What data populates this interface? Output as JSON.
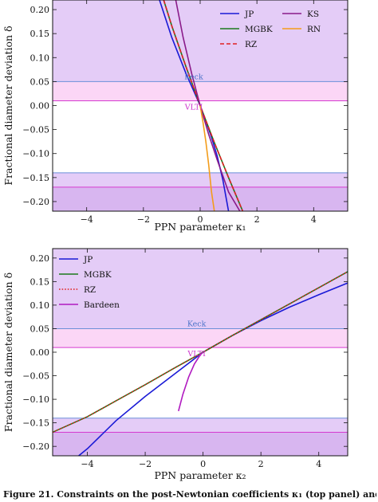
{
  "colors": {
    "excluded_fill": "#e4ccf7",
    "vlti_band_fill": "#fbd6f6",
    "keck_line": "#6b8fd8",
    "vlti_line": "#d63ad0",
    "keck_text": "#4a72c8",
    "vlti_text": "#cc33cc"
  },
  "caption": "Figure 21. Constraints on the post-Newtonian coefficients κ₁ (top panel) and",
  "chart_data": [
    {
      "type": "line",
      "xlabel": "PPN parameter κ₁",
      "ylabel": "Fractional diameter deviation δ",
      "xlim": [
        -5.2,
        5.2
      ],
      "ylim": [
        -0.22,
        0.22
      ],
      "xticks": [
        -4,
        -2,
        0,
        2,
        4
      ],
      "xtick_labels": [
        "−4",
        "−2",
        "0",
        "2",
        "4"
      ],
      "yticks": [
        -0.2,
        -0.15,
        -0.1,
        -0.05,
        0.0,
        0.05,
        0.1,
        0.15,
        0.2
      ],
      "ytick_labels": [
        "−0.20",
        "−0.15",
        "−0.10",
        "−0.05",
        "0.00",
        "0.05",
        "0.10",
        "0.15",
        "0.20"
      ],
      "grid": false,
      "legend_placement": "top-right",
      "constraints": {
        "keck": {
          "label": "Keck",
          "upper": 0.05,
          "lower": -0.14
        },
        "vlti": {
          "label": "VLTI",
          "upper": 0.01,
          "lower": -0.17
        }
      },
      "series": [
        {
          "name": "JP",
          "color": "#1a1ad6",
          "dash": "solid",
          "x": [
            -1.5,
            -1.0,
            -0.5,
            0.0,
            0.2,
            0.4,
            0.6,
            0.8,
            1.0
          ],
          "y": [
            0.232,
            0.142,
            0.067,
            0.0,
            -0.032,
            -0.066,
            -0.105,
            -0.155,
            -0.22
          ]
        },
        {
          "name": "MGBK",
          "color": "#1d7a1d",
          "dash": "solid",
          "x": [
            -1.35,
            -1.0,
            -0.5,
            0.0,
            0.5,
            1.0,
            1.5
          ],
          "y": [
            0.232,
            0.166,
            0.081,
            0.0,
            -0.077,
            -0.15,
            -0.22
          ]
        },
        {
          "name": "RZ",
          "color": "#e02020",
          "dash": "dashed",
          "x": [
            -1.35,
            -1.0,
            -0.5,
            0.0,
            0.5,
            1.0,
            1.5
          ],
          "y": [
            0.232,
            0.166,
            0.081,
            0.0,
            -0.077,
            -0.15,
            -0.22
          ]
        },
        {
          "name": "KS",
          "color": "#8a1b8a",
          "dash": "solid",
          "x": [
            -0.9,
            -0.6,
            -0.3,
            0.0,
            0.3,
            0.6,
            1.0,
            1.4
          ],
          "y": [
            0.232,
            0.142,
            0.067,
            0.0,
            -0.06,
            -0.113,
            -0.18,
            -0.22
          ]
        },
        {
          "name": "RN",
          "color": "#f39c1a",
          "dash": "solid",
          "x": [
            0.0,
            0.1,
            0.2,
            0.3,
            0.4,
            0.5
          ],
          "y": [
            0.0,
            -0.035,
            -0.075,
            -0.123,
            -0.18,
            -0.22
          ]
        }
      ]
    },
    {
      "type": "line",
      "xlabel": "PPN parameter κ₂",
      "ylabel": "Fractional diameter deviation δ",
      "xlim": [
        -5.2,
        5.0
      ],
      "ylim": [
        -0.22,
        0.22
      ],
      "xticks": [
        -4,
        -2,
        0,
        2,
        4
      ],
      "xtick_labels": [
        "−4",
        "−2",
        "0",
        "2",
        "4"
      ],
      "yticks": [
        -0.2,
        -0.15,
        -0.1,
        -0.05,
        0.0,
        0.05,
        0.1,
        0.15,
        0.2
      ],
      "ytick_labels": [
        "−0.20",
        "−0.15",
        "−0.10",
        "−0.05",
        "0.00",
        "0.05",
        "0.10",
        "0.15",
        "0.20"
      ],
      "grid": false,
      "legend_placement": "top-left",
      "constraints": {
        "keck": {
          "label": "Keck",
          "upper": 0.05,
          "lower": -0.14
        },
        "vlti": {
          "label": "VLTI",
          "upper": 0.01,
          "lower": -0.17
        }
      },
      "series": [
        {
          "name": "JP",
          "color": "#1a1ad6",
          "dash": "solid",
          "x": [
            -4.3,
            -4.0,
            -3.0,
            -2.0,
            -1.0,
            0.0,
            1.0,
            2.0,
            3.0,
            4.0,
            5.0
          ],
          "y": [
            -0.22,
            -0.205,
            -0.145,
            -0.094,
            -0.047,
            0.0,
            0.035,
            0.067,
            0.096,
            0.122,
            0.147
          ]
        },
        {
          "name": "MGBK",
          "color": "#1d7a1d",
          "dash": "solid",
          "x": [
            -5.2,
            -4.0,
            -3.0,
            -2.0,
            -1.0,
            0.0,
            1.0,
            2.0,
            3.0,
            4.0,
            5.0
          ],
          "y": [
            -0.17,
            -0.137,
            -0.103,
            -0.069,
            -0.034,
            0.0,
            0.035,
            0.069,
            0.103,
            0.137,
            0.171
          ]
        },
        {
          "name": "RZ",
          "color": "#e02020",
          "dash": "dotted",
          "x": [
            -5.2,
            -4.0,
            -3.0,
            -2.0,
            -1.0,
            0.0,
            1.0,
            2.0,
            3.0,
            4.0,
            5.0
          ],
          "y": [
            -0.17,
            -0.137,
            -0.103,
            -0.069,
            -0.034,
            0.0,
            0.035,
            0.069,
            0.103,
            0.137,
            0.171
          ]
        },
        {
          "name": "Bardeen",
          "color": "#b01ac0",
          "dash": "solid",
          "x": [
            -0.85,
            -0.7,
            -0.5,
            -0.3,
            -0.1,
            0.0
          ],
          "y": [
            -0.125,
            -0.09,
            -0.053,
            -0.025,
            -0.006,
            0.0
          ]
        }
      ]
    }
  ]
}
